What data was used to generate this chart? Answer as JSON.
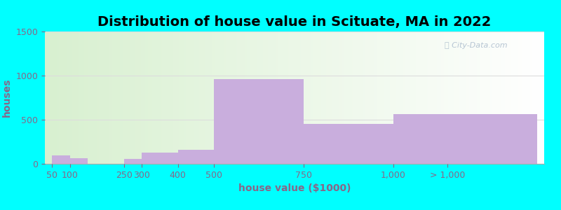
{
  "title": "Distribution of house value in Scituate, MA in 2022",
  "xlabel": "house value ($1000)",
  "ylabel": "houses",
  "bar_labels": [
    "50",
    "100",
    "250",
    "300",
    "400",
    "500",
    "750",
    "1,000",
    "> 1,000"
  ],
  "bar_heights": [
    95,
    65,
    55,
    130,
    155,
    960,
    450,
    560,
    560
  ],
  "bar_lefts": [
    50,
    100,
    250,
    300,
    400,
    500,
    750,
    1000,
    1150
  ],
  "bar_rights": [
    100,
    150,
    300,
    400,
    500,
    750,
    1000,
    1150,
    1400
  ],
  "bar_color": "#c9aedd",
  "outer_bg": "#00ffff",
  "plot_bg_left": "#d8f0d0",
  "plot_bg_right": "#ffffff",
  "ylim": [
    0,
    1500
  ],
  "xlim": [
    30,
    1420
  ],
  "yticks": [
    0,
    500,
    1000,
    1500
  ],
  "grid_color": "#dddddd",
  "title_fontsize": 14,
  "axis_fontsize": 10,
  "label_fontsize": 9,
  "tick_color": "#886688"
}
